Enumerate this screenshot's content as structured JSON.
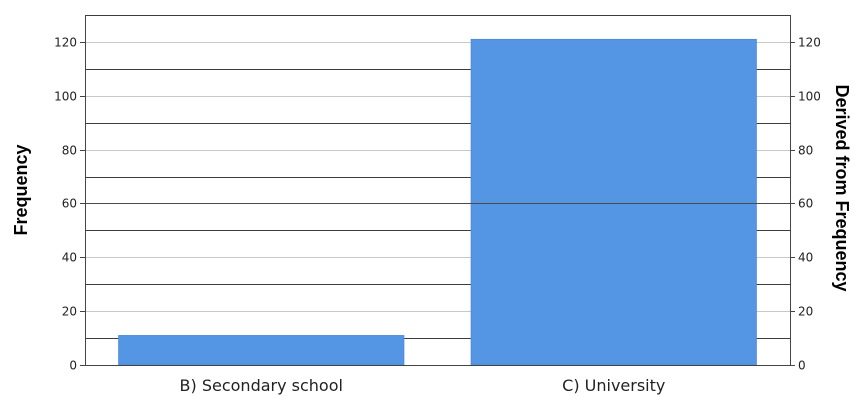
{
  "chart_data": {
    "type": "bar",
    "categories": [
      "B) Secondary school",
      "C) University"
    ],
    "values": [
      11,
      121
    ],
    "ylabel": "Frequency",
    "ylabel_right": "Derived from Frequency",
    "ylim": [
      0,
      130
    ],
    "yticks": [
      0,
      20,
      40,
      60,
      80,
      100,
      120
    ],
    "yticks_right": [
      0,
      20,
      40,
      60,
      80,
      100,
      120
    ],
    "minor_gridlines": [
      10,
      30,
      50,
      70,
      90,
      110
    ],
    "grid": true,
    "legend": "none",
    "colors": {
      "bar": "#5495e4",
      "bar_edge": "#4a86d0",
      "major_grid": "#c8c8c8",
      "minor_grid": "#3c3c3c",
      "axis": "#444444"
    }
  }
}
